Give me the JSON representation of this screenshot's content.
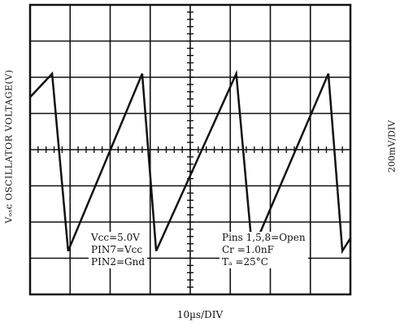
{
  "chart_data": {
    "type": "line",
    "title": "",
    "ylabel": "Vₒₛᴄ OSCILLATOR VOLTAGE(V)",
    "right_label": "200mV/DIV",
    "xlabel": "10µs/DIV",
    "divisions": {
      "x": 8,
      "y": 8
    },
    "grid": true,
    "x_unit": "div",
    "y_unit": "div",
    "series": [
      {
        "points": [
          [
            0.0,
            5.45
          ],
          [
            0.55,
            6.1
          ],
          [
            0.95,
            1.2
          ],
          [
            2.8,
            6.1
          ],
          [
            3.15,
            1.2
          ],
          [
            5.15,
            6.1
          ],
          [
            5.55,
            1.2
          ],
          [
            7.45,
            6.1
          ],
          [
            7.8,
            1.2
          ],
          [
            8.0,
            1.55
          ]
        ]
      }
    ],
    "annotations": {
      "left": [
        "Vcc=5.0V",
        "PIN7=Vcc",
        "PIN2=Gnd"
      ],
      "right": [
        "Pins 1,5,8=Open",
        "Cr =1.0nF",
        "Tₐ =25°C"
      ]
    }
  }
}
